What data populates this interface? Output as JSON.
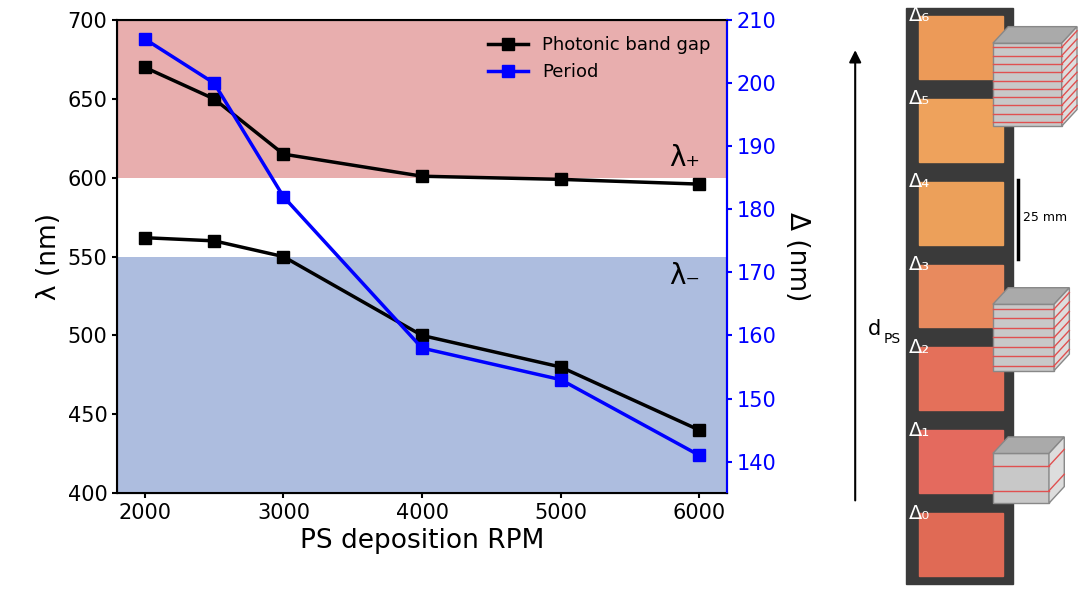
{
  "chart_data": {
    "type": "line",
    "x_label": "PS deposition RPM",
    "y_label": "λ (nm)",
    "y2_label": "Δ (nm)",
    "x": [
      2000,
      2500,
      3000,
      4000,
      5000,
      6000
    ],
    "series": [
      {
        "name": "Photonic band gap",
        "color": "#000000",
        "marker": "square",
        "line_style": "solid",
        "values": [
          670,
          650,
          615,
          601,
          599,
          596
        ]
      },
      {
        "name": "Photonic band gap",
        "color": "#000000",
        "marker": "square",
        "line_style": "solid",
        "values": [
          562,
          560,
          550,
          500,
          480,
          440
        ]
      },
      {
        "name": "Period",
        "color": "#0000ff",
        "marker": "square",
        "line_style": "solid",
        "axis": "y2",
        "values": [
          207,
          200,
          182,
          158,
          153,
          141
        ]
      }
    ],
    "bands": [
      {
        "from": 600,
        "to": 700,
        "color": "#e8aeae",
        "label": "λ₊"
      },
      {
        "from": 400,
        "to": 550,
        "color": "#adbddf",
        "label": "λ₋"
      }
    ],
    "xlim": [
      1800,
      6200
    ],
    "xticks": [
      2000,
      3000,
      4000,
      5000,
      6000
    ],
    "ylim": [
      400,
      700
    ],
    "yticks": [
      400,
      450,
      500,
      550,
      600,
      650,
      700
    ],
    "y2lim": [
      135,
      210
    ],
    "y2ticks": [
      140,
      150,
      160,
      170,
      180,
      190,
      200,
      210
    ],
    "legend": "upper right",
    "grid": false,
    "panel": {
      "samples": [
        {
          "label": "Δ₀",
          "color": "#e06a55"
        },
        {
          "label": "Δ₁",
          "color": "#e46a5e"
        },
        {
          "label": "Δ₂",
          "color": "#e4705a"
        },
        {
          "label": "Δ₃",
          "color": "#e88a5e"
        },
        {
          "label": "Δ₄",
          "color": "#eca05a"
        },
        {
          "label": "Δ₅",
          "color": "#eea25c"
        },
        {
          "label": "Δ₆",
          "color": "#ec9a58"
        }
      ],
      "scale_label": "25 mm",
      "arrow_label": {
        "base": "d",
        "subscript": "PS"
      }
    }
  }
}
